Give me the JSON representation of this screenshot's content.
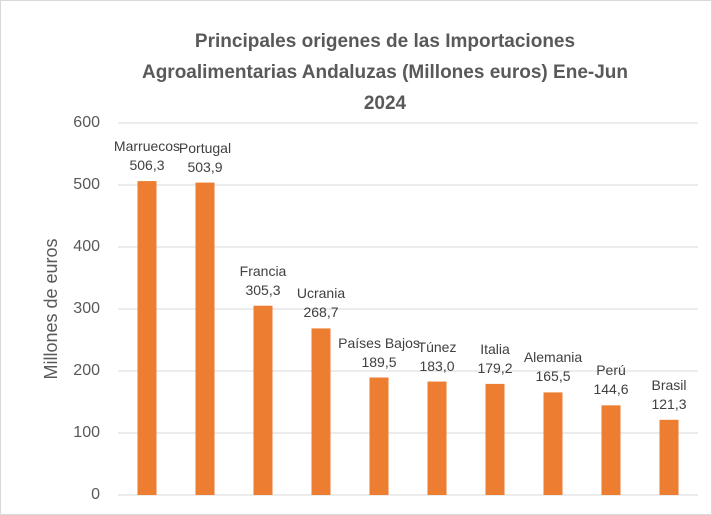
{
  "chart_data": {
    "type": "bar",
    "title": "Principales origenes de las Importaciones Agroalimentarias Andaluzas (Millones euros) Ene-Jun 2024",
    "y_label": "Millones de euros",
    "categories": [
      "Marruecos",
      "Portugal",
      "Francia",
      "Ucrania",
      "Países Bajos",
      "Túnez",
      "Italia",
      "Alemania",
      "Perú",
      "Brasil"
    ],
    "values": [
      506.3,
      503.9,
      305.3,
      268.7,
      189.5,
      183.0,
      179.2,
      165.5,
      144.6,
      121.3
    ],
    "value_labels": [
      "506,3",
      "503,9",
      "305,3",
      "268,7",
      "189,5",
      "183,0",
      "179,2",
      "165,5",
      "144,6",
      "121,3"
    ],
    "color": "#ed7d31",
    "ylim": [
      0,
      600
    ],
    "yticks": [
      0,
      100,
      200,
      300,
      400,
      500,
      600
    ],
    "grid": true
  }
}
